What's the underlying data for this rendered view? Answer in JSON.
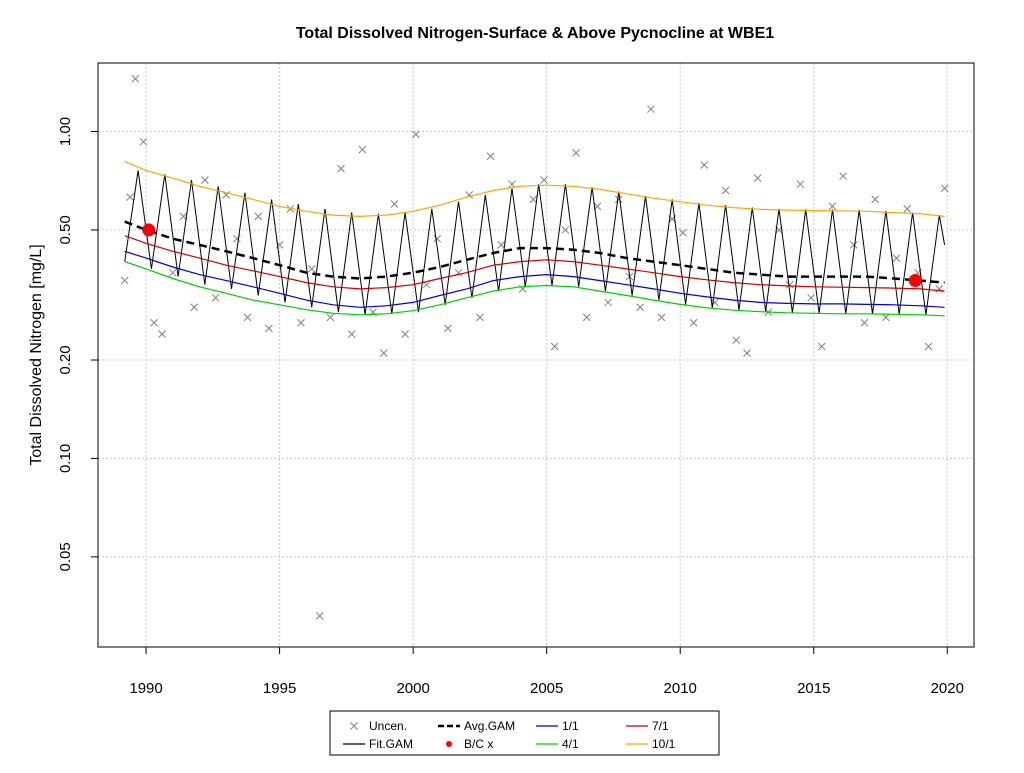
{
  "chart_data": {
    "type": "scatter",
    "title": "Total Dissolved Nitrogen-Surface & Above Pycnocline at WBE1",
    "ylabel": "Total Dissolved Nitrogen [mg/L]",
    "xlabel": "",
    "y_scale": "log",
    "xlim": [
      1988.2,
      2021.0
    ],
    "ylim": [
      0.0265,
      1.62
    ],
    "x_ticks": [
      1990,
      1995,
      2000,
      2005,
      2010,
      2015,
      2020
    ],
    "x_tick_labels": [
      "1990",
      "1995",
      "2000",
      "2005",
      "2010",
      "2015",
      "2020"
    ],
    "y_ticks": [
      0.05,
      0.1,
      0.2,
      0.5,
      1.0
    ],
    "y_tick_labels": [
      "0.05",
      "0.10",
      "0.20",
      "0.50",
      "1.00"
    ],
    "grid": true,
    "legend_placement": "bottom-outside",
    "legend": [
      {
        "label": "Uncen.",
        "kind": "x-marker",
        "color": "#7f7f7f"
      },
      {
        "label": "Fit.GAM",
        "kind": "line",
        "color": "#000000"
      },
      {
        "label": "Avg.GAM",
        "kind": "dashed-line",
        "color": "#000000"
      },
      {
        "label": "B/C x",
        "kind": "dot",
        "color": "#ff0000"
      },
      {
        "label": "1/1",
        "kind": "line",
        "color": "#0000cc"
      },
      {
        "label": "4/1",
        "kind": "line",
        "color": "#00cc00"
      },
      {
        "label": "7/1",
        "kind": "line",
        "color": "#cc0000"
      },
      {
        "label": "10/1",
        "kind": "line",
        "color": "#ffa500"
      }
    ],
    "colors": {
      "uncen": "#7f7f7f",
      "fit": "#000000",
      "avg": "#000000",
      "bc": "#ff0000",
      "jan": "#0000cc",
      "apr": "#00cc00",
      "jul": "#cc0000",
      "oct": "#ffa500",
      "grid": "#c8c8c8"
    },
    "series": [
      {
        "name": "Avg.GAM",
        "x": [
          1989.2,
          1990,
          1991,
          1992,
          1993,
          1994,
          1995,
          1996,
          1997,
          1998,
          1999,
          2000,
          2001,
          2002,
          2003,
          2004,
          2005,
          2006,
          2007,
          2008,
          2009,
          2010,
          2011,
          2012,
          2013,
          2014,
          2015,
          2016,
          2017,
          2018,
          2019,
          2019.9
        ],
        "values": [
          0.53,
          0.5,
          0.47,
          0.45,
          0.43,
          0.41,
          0.39,
          0.37,
          0.36,
          0.355,
          0.36,
          0.37,
          0.385,
          0.405,
          0.425,
          0.44,
          0.44,
          0.435,
          0.425,
          0.41,
          0.4,
          0.39,
          0.38,
          0.37,
          0.365,
          0.36,
          0.36,
          0.36,
          0.36,
          0.355,
          0.35,
          0.345
        ]
      },
      {
        "name": "1/1",
        "x": [
          1989.2,
          1990,
          1991,
          1992,
          1993,
          1994,
          1995,
          1996,
          1997,
          1998,
          1999,
          2000,
          2001,
          2002,
          2003,
          2004,
          2005,
          2006,
          2007,
          2008,
          2009,
          2010,
          2011,
          2012,
          2013,
          2014,
          2015,
          2016,
          2017,
          2018,
          2019,
          2019.9
        ],
        "values": [
          0.43,
          0.41,
          0.385,
          0.365,
          0.35,
          0.335,
          0.32,
          0.305,
          0.295,
          0.29,
          0.293,
          0.3,
          0.315,
          0.33,
          0.35,
          0.36,
          0.365,
          0.36,
          0.35,
          0.34,
          0.33,
          0.32,
          0.312,
          0.305,
          0.3,
          0.298,
          0.297,
          0.297,
          0.296,
          0.295,
          0.293,
          0.29
        ]
      },
      {
        "name": "4/1",
        "x": [
          1989.2,
          1990,
          1991,
          1992,
          1993,
          1994,
          1995,
          1996,
          1997,
          1998,
          1999,
          2000,
          2001,
          2002,
          2003,
          2004,
          2005,
          2006,
          2007,
          2008,
          2009,
          2010,
          2011,
          2012,
          2013,
          2014,
          2015,
          2016,
          2017,
          2018,
          2019,
          2019.9
        ],
        "values": [
          0.4,
          0.38,
          0.355,
          0.335,
          0.32,
          0.305,
          0.295,
          0.285,
          0.278,
          0.275,
          0.277,
          0.283,
          0.295,
          0.31,
          0.325,
          0.335,
          0.338,
          0.335,
          0.325,
          0.315,
          0.305,
          0.296,
          0.289,
          0.284,
          0.281,
          0.279,
          0.278,
          0.277,
          0.277,
          0.276,
          0.275,
          0.273
        ]
      },
      {
        "name": "7/1",
        "x": [
          1989.2,
          1990,
          1991,
          1992,
          1993,
          1994,
          1995,
          1996,
          1997,
          1998,
          1999,
          2000,
          2001,
          2002,
          2003,
          2004,
          2005,
          2006,
          2007,
          2008,
          2009,
          2010,
          2011,
          2012,
          2013,
          2014,
          2015,
          2016,
          2017,
          2018,
          2019,
          2019.9
        ],
        "values": [
          0.48,
          0.455,
          0.43,
          0.41,
          0.39,
          0.375,
          0.36,
          0.345,
          0.335,
          0.33,
          0.333,
          0.34,
          0.355,
          0.37,
          0.39,
          0.4,
          0.405,
          0.4,
          0.39,
          0.38,
          0.37,
          0.36,
          0.352,
          0.345,
          0.34,
          0.337,
          0.335,
          0.334,
          0.333,
          0.332,
          0.33,
          0.325
        ]
      },
      {
        "name": "10/1",
        "x": [
          1989.2,
          1990,
          1991,
          1992,
          1993,
          1994,
          1995,
          1996,
          1997,
          1998,
          1999,
          2000,
          2001,
          2002,
          2003,
          2004,
          2005,
          2006,
          2007,
          2008,
          2009,
          2010,
          2011,
          2012,
          2013,
          2014,
          2015,
          2016,
          2017,
          2018,
          2019,
          2019.9
        ],
        "values": [
          0.81,
          0.76,
          0.72,
          0.68,
          0.65,
          0.62,
          0.59,
          0.57,
          0.555,
          0.55,
          0.555,
          0.57,
          0.595,
          0.63,
          0.66,
          0.68,
          0.685,
          0.68,
          0.665,
          0.645,
          0.625,
          0.61,
          0.595,
          0.585,
          0.578,
          0.575,
          0.573,
          0.572,
          0.57,
          0.565,
          0.56,
          0.55
        ]
      },
      {
        "name": "Fit.GAM",
        "x": [
          1989.2,
          1989.7,
          1990.2,
          1990.7,
          1991.2,
          1991.7,
          1992.2,
          1992.7,
          1993.2,
          1993.7,
          1994.2,
          1994.7,
          1995.2,
          1995.7,
          1996.2,
          1996.7,
          1997.2,
          1997.7,
          1998.2,
          1998.7,
          1999.2,
          1999.7,
          2000.2,
          2000.7,
          2001.2,
          2001.7,
          2002.2,
          2002.7,
          2003.2,
          2003.7,
          2004.2,
          2004.7,
          2005.2,
          2005.7,
          2006.2,
          2006.7,
          2007.2,
          2007.7,
          2008.2,
          2008.7,
          2009.2,
          2009.7,
          2010.2,
          2010.7,
          2011.2,
          2011.7,
          2012.2,
          2012.7,
          2013.2,
          2013.7,
          2014.2,
          2014.7,
          2015.2,
          2015.7,
          2016.2,
          2016.7,
          2017.2,
          2017.7,
          2018.2,
          2018.7,
          2019.2,
          2019.7,
          2019.9
        ],
        "values": [
          0.4,
          0.76,
          0.38,
          0.74,
          0.36,
          0.71,
          0.34,
          0.68,
          0.33,
          0.65,
          0.315,
          0.62,
          0.3,
          0.6,
          0.29,
          0.58,
          0.28,
          0.565,
          0.275,
          0.56,
          0.277,
          0.565,
          0.28,
          0.58,
          0.295,
          0.61,
          0.31,
          0.64,
          0.325,
          0.67,
          0.335,
          0.69,
          0.338,
          0.69,
          0.335,
          0.675,
          0.325,
          0.655,
          0.315,
          0.635,
          0.305,
          0.62,
          0.296,
          0.605,
          0.289,
          0.595,
          0.284,
          0.585,
          0.281,
          0.58,
          0.279,
          0.578,
          0.278,
          0.577,
          0.277,
          0.576,
          0.277,
          0.572,
          0.276,
          0.565,
          0.275,
          0.555,
          0.45
        ]
      },
      {
        "name": "Uncen.",
        "x": [
          1989.2,
          1989.4,
          1989.6,
          1989.9,
          1990.3,
          1990.6,
          1991.0,
          1991.4,
          1991.8,
          1992.2,
          1992.6,
          1993.0,
          1993.4,
          1993.8,
          1994.2,
          1994.6,
          1995.0,
          1995.4,
          1995.8,
          1996.2,
          1996.5,
          1996.9,
          1997.3,
          1997.7,
          1998.1,
          1998.5,
          1998.9,
          1999.3,
          1999.7,
          2000.1,
          2000.5,
          2000.9,
          2001.3,
          2001.7,
          2002.1,
          2002.5,
          2002.9,
          2003.3,
          2003.7,
          2004.1,
          2004.5,
          2004.9,
          2005.3,
          2005.7,
          2006.1,
          2006.5,
          2006.9,
          2007.3,
          2007.7,
          2008.1,
          2008.5,
          2008.9,
          2009.3,
          2009.7,
          2010.1,
          2010.5,
          2010.9,
          2011.3,
          2011.7,
          2012.1,
          2012.5,
          2012.9,
          2013.3,
          2013.7,
          2014.1,
          2014.5,
          2014.9,
          2015.3,
          2015.7,
          2016.1,
          2016.5,
          2016.9,
          2017.3,
          2017.7,
          2018.1,
          2018.5,
          2018.9,
          2019.3,
          2019.7,
          2019.9
        ],
        "values": [
          0.35,
          0.63,
          1.45,
          0.93,
          0.26,
          0.24,
          0.37,
          0.55,
          0.29,
          0.71,
          0.31,
          0.64,
          0.47,
          0.27,
          0.55,
          0.25,
          0.45,
          0.58,
          0.26,
          0.38,
          0.033,
          0.27,
          0.77,
          0.24,
          0.88,
          0.28,
          0.21,
          0.6,
          0.24,
          0.98,
          0.34,
          0.47,
          0.25,
          0.37,
          0.64,
          0.27,
          0.84,
          0.45,
          0.69,
          0.33,
          0.62,
          0.71,
          0.22,
          0.5,
          0.86,
          0.27,
          0.59,
          0.3,
          0.62,
          0.36,
          0.29,
          1.17,
          0.27,
          0.54,
          0.49,
          0.26,
          0.79,
          0.3,
          0.66,
          0.23,
          0.21,
          0.72,
          0.28,
          0.5,
          0.34,
          0.69,
          0.31,
          0.22,
          0.59,
          0.73,
          0.45,
          0.26,
          0.62,
          0.27,
          0.41,
          0.58,
          0.37,
          0.22,
          0.33,
          0.67
        ]
      },
      {
        "name": "B/C x",
        "x": [
          1990.1,
          2018.8
        ],
        "values": [
          0.5,
          0.35
        ]
      }
    ]
  }
}
